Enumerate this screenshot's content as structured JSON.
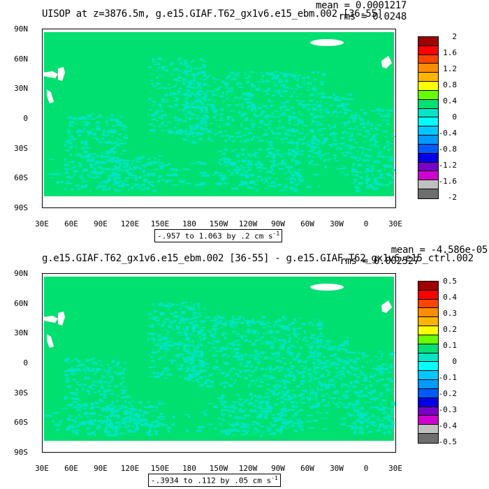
{
  "panels": [
    {
      "title": "UISOP at z=3876.5m, g.e15.GIAF.T62_gx1v6.e15_ebm.002 [36-55]",
      "stats": {
        "mean": "mean = 0.0001217",
        "rms": "rms = 0.0248"
      },
      "contour_info": "-.957 to 1.063 by .2 cm s",
      "contour_unit_sup": "-1",
      "lat_ticks": [
        "90N",
        "60N",
        "30N",
        "0",
        "30S",
        "60S",
        "90S"
      ],
      "lon_ticks": [
        "30E",
        "60E",
        "90E",
        "120E",
        "150E",
        "180",
        "150W",
        "120W",
        "90W",
        "60W",
        "30W",
        "0",
        "30E"
      ],
      "legend": {
        "labels": [
          "2",
          "1.6",
          "1.2",
          "0.8",
          "0.4",
          "0",
          "-0.4",
          "-0.8",
          "-1.2",
          "-1.6",
          "-2"
        ],
        "colors": [
          "#a00000",
          "#ff0000",
          "#ff4500",
          "#ff8c00",
          "#ffb400",
          "#ffff00",
          "#66ff00",
          "#00e070",
          "#00e5c5",
          "#00ffff",
          "#00c8ff",
          "#009aff",
          "#005aff",
          "#0000e6",
          "#7a00c8",
          "#d000d0",
          "#c0c0c0",
          "#6e6e6e"
        ]
      }
    },
    {
      "title": "g.e15.GIAF.T62_gx1v6.e15_ebm.002 [36-55] - g.e15.GIAF.T62_gx1v6.e15_ctrl.002",
      "stats": {
        "mean": "mean = -4.586e-05",
        "rms": "rms = 0.002527"
      },
      "contour_info": "-.3934 to .112 by .05 cm s",
      "contour_unit_sup": "-1",
      "lat_ticks": [
        "90N",
        "60N",
        "30N",
        "0",
        "30S",
        "60S",
        "90S"
      ],
      "lon_ticks": [
        "30E",
        "60E",
        "90E",
        "120E",
        "150E",
        "180",
        "150W",
        "120W",
        "90W",
        "60W",
        "30W",
        "0",
        "30E"
      ],
      "legend": {
        "labels": [
          "0.5",
          "0.4",
          "0.3",
          "0.2",
          "0.1",
          "0",
          "-0.1",
          "-0.2",
          "-0.3",
          "-0.4",
          "-0.5"
        ],
        "colors": [
          "#a00000",
          "#ff0000",
          "#ff4500",
          "#ff8c00",
          "#ffb400",
          "#ffff00",
          "#66ff00",
          "#00e070",
          "#00e5c5",
          "#00ffff",
          "#00c8ff",
          "#009aff",
          "#005aff",
          "#0000e6",
          "#7a00c8",
          "#d000d0",
          "#c0c0c0",
          "#6e6e6e"
        ]
      }
    }
  ],
  "map_colors": {
    "field": "#00e070",
    "anomaly": "#00e5c5",
    "missing": "#ffffff"
  }
}
